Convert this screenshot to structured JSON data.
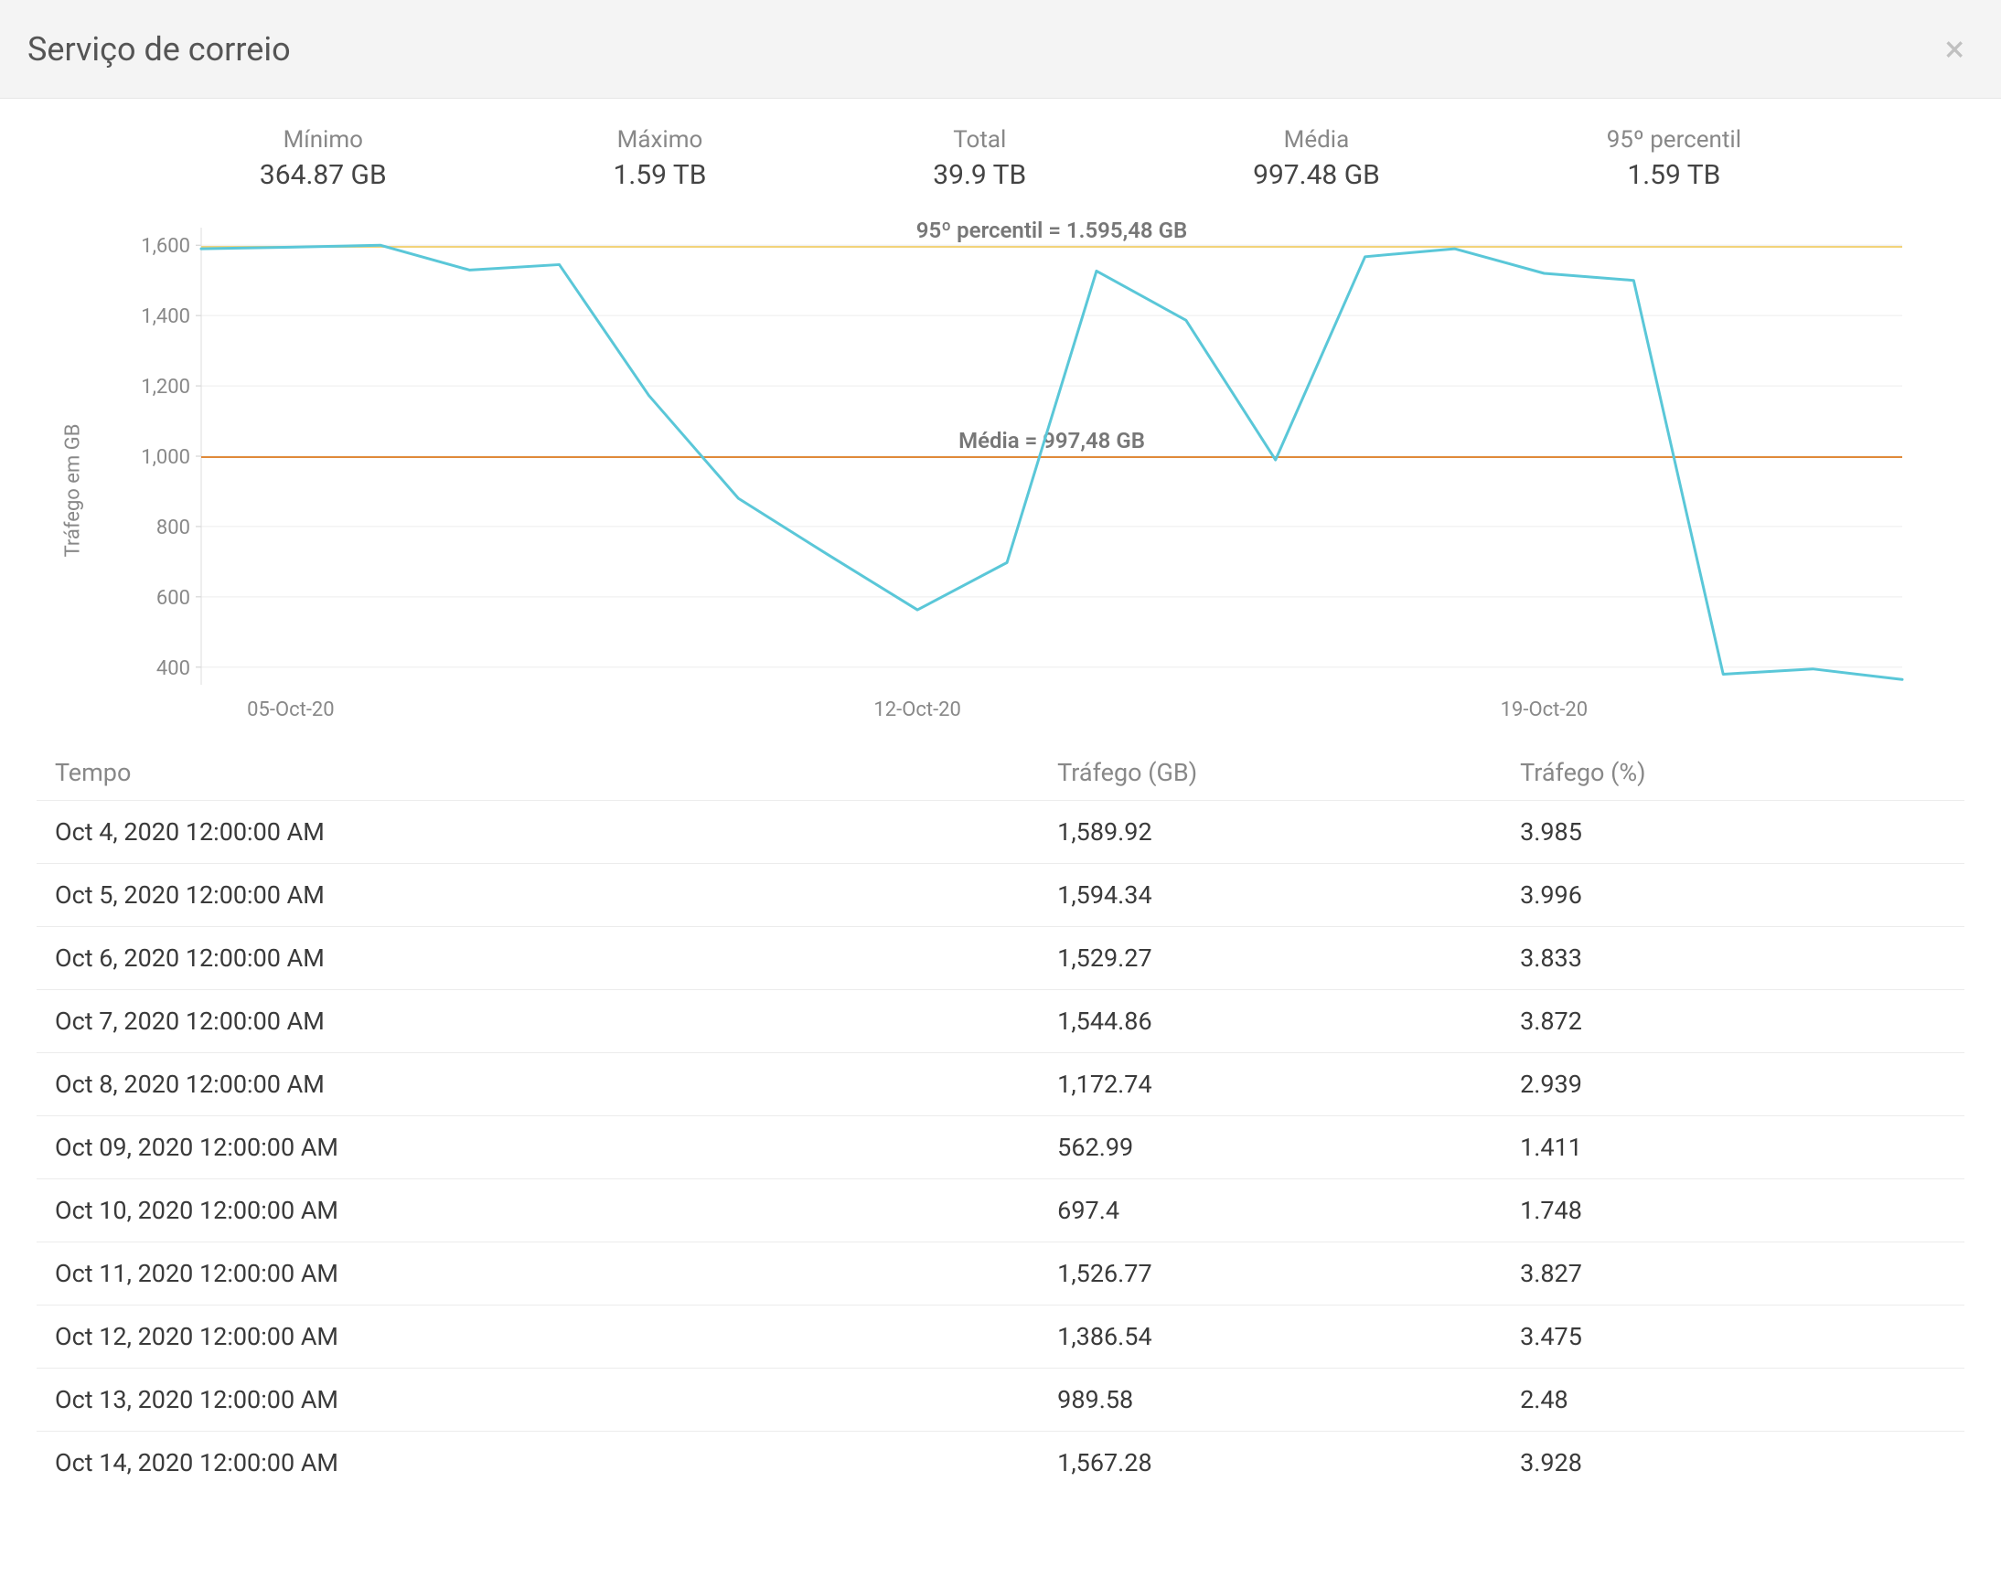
{
  "header": {
    "title": "Serviço de correio"
  },
  "summary": [
    {
      "label": "Mínimo",
      "value": "364.87 GB"
    },
    {
      "label": "Máximo",
      "value": "1.59 TB"
    },
    {
      "label": "Total",
      "value": "39.9 TB"
    },
    {
      "label": "Média",
      "value": "997.48 GB"
    },
    {
      "label": "95º percentil",
      "value": "1.59 TB"
    }
  ],
  "chart": {
    "type": "line",
    "y_axis_title": "Tráfego em GB",
    "y_ticks": [
      400,
      600,
      800,
      1000,
      1200,
      1400,
      1600
    ],
    "x_ticks": [
      {
        "label": "05-Oct-20",
        "value": 1
      },
      {
        "label": "12-Oct-20",
        "value": 8
      },
      {
        "label": "19-Oct-20",
        "value": 15
      }
    ],
    "x_count": 19,
    "line_color": "#5ac7d8",
    "line_width": 3,
    "grid_color": "#eeeeee",
    "axis_text_color": "#888888",
    "background_color": "#ffffff",
    "reference_lines": [
      {
        "label": "95º percentil = 1.595,48 GB",
        "value": 1595.48,
        "color": "#f2d37a"
      },
      {
        "label": "Média = 997,48 GB",
        "value": 997.48,
        "color": "#e08a3a"
      }
    ],
    "series": [
      {
        "x": 0,
        "y": 1589.92
      },
      {
        "x": 1,
        "y": 1594.34
      },
      {
        "x": 2,
        "y": 1600.0
      },
      {
        "x": 3,
        "y": 1529.27
      },
      {
        "x": 4,
        "y": 1544.86
      },
      {
        "x": 5,
        "y": 1172.74
      },
      {
        "x": 6,
        "y": 880.0
      },
      {
        "x": 7,
        "y": 720.0
      },
      {
        "x": 8,
        "y": 562.99
      },
      {
        "x": 9,
        "y": 697.4
      },
      {
        "x": 10,
        "y": 1526.77
      },
      {
        "x": 11,
        "y": 1386.54
      },
      {
        "x": 12,
        "y": 989.58
      },
      {
        "x": 13,
        "y": 1567.28
      },
      {
        "x": 14,
        "y": 1590.0
      },
      {
        "x": 15,
        "y": 1520.0
      },
      {
        "x": 16,
        "y": 1500.0
      },
      {
        "x": 17,
        "y": 380.0
      },
      {
        "x": 18,
        "y": 395.0
      },
      {
        "x": 19,
        "y": 364.87
      }
    ],
    "ylim": [
      350,
      1650
    ]
  },
  "table": {
    "columns": [
      "Tempo",
      "Tráfego (GB)",
      "Tráfego (%)"
    ],
    "rows": [
      [
        "Oct 4, 2020 12:00:00 AM",
        "1,589.92",
        "3.985"
      ],
      [
        "Oct 5, 2020 12:00:00 AM",
        "1,594.34",
        "3.996"
      ],
      [
        "Oct 6, 2020 12:00:00 AM",
        "1,529.27",
        "3.833"
      ],
      [
        "Oct 7, 2020 12:00:00 AM",
        "1,544.86",
        "3.872"
      ],
      [
        "Oct 8, 2020 12:00:00 AM",
        "1,172.74",
        "2.939"
      ],
      [
        "Oct 09, 2020 12:00:00 AM",
        "562.99",
        "1.411"
      ],
      [
        "Oct 10, 2020 12:00:00 AM",
        "697.4",
        "1.748"
      ],
      [
        "Oct 11, 2020 12:00:00 AM",
        "1,526.77",
        "3.827"
      ],
      [
        "Oct 12, 2020 12:00:00 AM",
        "1,386.54",
        "3.475"
      ],
      [
        "Oct 13, 2020 12:00:00 AM",
        "989.58",
        "2.48"
      ],
      [
        "Oct 14, 2020 12:00:00 AM",
        "1,567.28",
        "3.928"
      ]
    ]
  }
}
